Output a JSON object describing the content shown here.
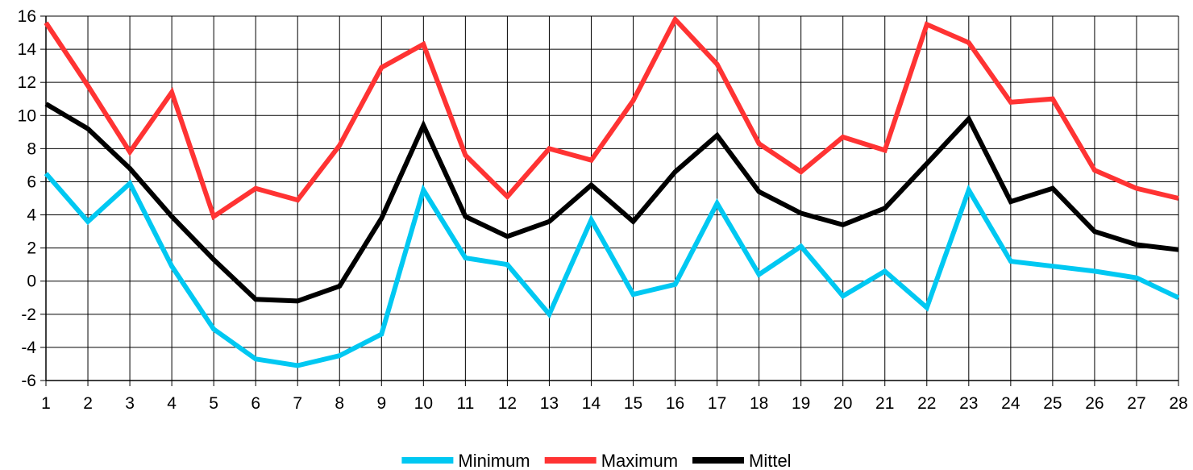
{
  "chart_data": {
    "type": "line",
    "title": "",
    "xlabel": "",
    "ylabel": "",
    "x": [
      1,
      2,
      3,
      4,
      5,
      6,
      7,
      8,
      9,
      10,
      11,
      12,
      13,
      14,
      15,
      16,
      17,
      18,
      19,
      20,
      21,
      22,
      23,
      24,
      25,
      26,
      27,
      28
    ],
    "ylim": [
      -6,
      16
    ],
    "yticks": [
      -6,
      -4,
      -2,
      0,
      2,
      4,
      6,
      8,
      10,
      12,
      14,
      16
    ],
    "grid": true,
    "legend_position": "bottom-center",
    "series": [
      {
        "name": "Minimum",
        "color": "#00c8f2",
        "values": [
          6.5,
          3.6,
          5.9,
          0.9,
          -2.9,
          -4.7,
          -5.1,
          -4.5,
          -3.2,
          5.5,
          1.4,
          1.0,
          -2.0,
          3.7,
          -0.8,
          -0.2,
          4.7,
          0.4,
          2.1,
          -0.9,
          0.6,
          -1.6,
          5.5,
          1.2,
          0.9,
          0.6,
          0.2,
          -1.0
        ]
      },
      {
        "name": "Maximum",
        "color": "#ff3333",
        "values": [
          15.6,
          11.8,
          7.8,
          11.4,
          3.9,
          5.6,
          4.9,
          8.2,
          12.9,
          14.3,
          7.6,
          5.1,
          8.0,
          7.3,
          10.9,
          15.8,
          13.1,
          8.3,
          6.6,
          8.7,
          7.9,
          15.5,
          14.4,
          10.8,
          11.0,
          6.7,
          5.6,
          5.0
        ]
      },
      {
        "name": "Mittel",
        "color": "#000000",
        "values": [
          10.7,
          9.2,
          6.8,
          3.9,
          1.3,
          -1.1,
          -1.2,
          -0.3,
          3.8,
          9.4,
          3.9,
          2.7,
          3.6,
          5.8,
          3.6,
          6.6,
          8.8,
          5.4,
          4.1,
          3.4,
          4.4,
          7.1,
          9.8,
          4.8,
          5.6,
          3.0,
          2.2,
          1.9
        ]
      }
    ]
  }
}
